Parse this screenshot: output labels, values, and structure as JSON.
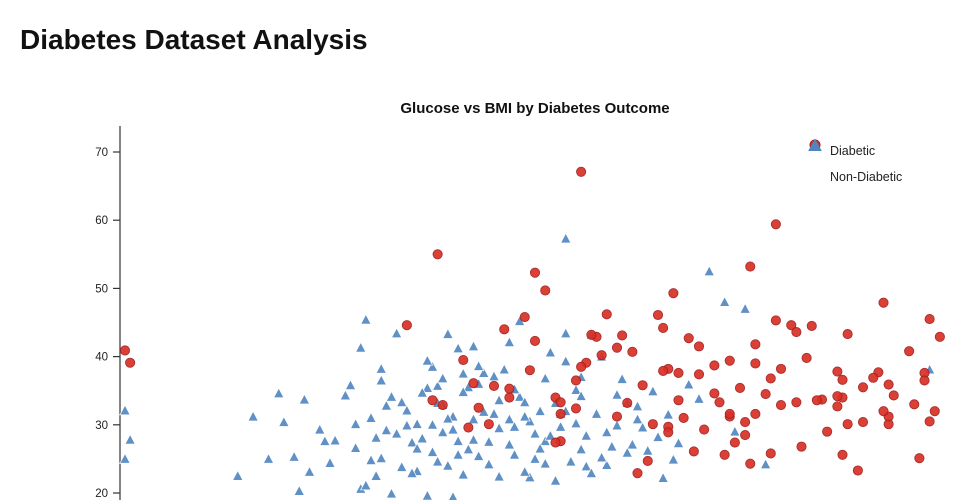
{
  "page": {
    "title": "Diabetes Dataset Analysis"
  },
  "chart_data": {
    "type": "scatter",
    "title": "Glucose vs BMI by Diabetes Outcome",
    "xlabel": "",
    "ylabel": "",
    "grid": false,
    "legend_position": "top-right",
    "xlim": [
      40,
      200
    ],
    "ylim": [
      18,
      72
    ],
    "yticks": [
      20,
      30,
      40,
      50,
      60,
      70
    ],
    "series": [
      {
        "name": "Diabetic",
        "marker": "circle",
        "color": "#d93025",
        "edge": "#a31d1d",
        "points": [
          [
            148,
            33.6
          ],
          [
            183,
            23.3
          ],
          [
            137,
            43.1
          ],
          [
            197,
            30.5
          ],
          [
            189,
            30.1
          ],
          [
            166,
            25.8
          ],
          [
            118,
            45.8
          ],
          [
            107,
            29.6
          ],
          [
            115,
            35.3
          ],
          [
            196,
            37.6
          ],
          [
            119,
            38.0
          ],
          [
            143,
            30.1
          ],
          [
            125,
            31.6
          ],
          [
            145,
            44.2
          ],
          [
            158,
            31.2
          ],
          [
            111,
            30.1
          ],
          [
            180,
            34.0
          ],
          [
            171,
            33.3
          ],
          [
            180,
            25.6
          ],
          [
            193,
            40.8
          ],
          [
            159,
            27.4
          ],
          [
            180,
            36.6
          ],
          [
            146,
            29.7
          ],
          [
            124,
            34.0
          ],
          [
            129,
            67.1
          ],
          [
            167,
            59.4
          ],
          [
            197,
            45.5
          ],
          [
            168,
            38.2
          ],
          [
            165,
            34.5
          ],
          [
            162,
            53.2
          ],
          [
            173,
            39.8
          ],
          [
            139,
            40.7
          ],
          [
            161,
            30.4
          ],
          [
            138,
            33.2
          ],
          [
            128,
            32.4
          ],
          [
            181,
            43.3
          ],
          [
            155,
            34.6
          ],
          [
            133,
            40.2
          ],
          [
            189,
            31.2
          ],
          [
            195,
            25.1
          ],
          [
            179,
            34.2
          ],
          [
            150,
            42.7
          ],
          [
            187,
            37.7
          ],
          [
            184,
            35.5
          ],
          [
            158,
            39.4
          ],
          [
            176,
            33.7
          ],
          [
            130,
            39.1
          ],
          [
            112,
            35.7
          ],
          [
            147,
            49.3
          ],
          [
            136,
            41.3
          ],
          [
            184,
            30.4
          ],
          [
            174,
            44.5
          ],
          [
            109,
            32.5
          ],
          [
            152,
            41.5
          ],
          [
            157,
            25.6
          ],
          [
            134,
            46.2
          ],
          [
            102,
            32.9
          ],
          [
            144,
            46.1
          ],
          [
            132,
            42.9
          ],
          [
            188,
            47.9
          ],
          [
            155,
            38.7
          ],
          [
            167,
            45.3
          ],
          [
            125,
            33.3
          ],
          [
            196,
            36.5
          ],
          [
            189,
            35.9
          ],
          [
            158,
            31.6
          ],
          [
            146,
            38.2
          ],
          [
            100,
            33.6
          ],
          [
            170,
            44.6
          ],
          [
            146,
            28.9
          ],
          [
            161,
            28.5
          ],
          [
            190,
            34.3
          ],
          [
            148,
            37.6
          ],
          [
            163,
            39.0
          ],
          [
            115,
            34.0
          ],
          [
            120,
            42.3
          ],
          [
            163,
            31.6
          ],
          [
            145,
            37.9
          ],
          [
            128,
            36.5
          ],
          [
            198,
            32.0
          ],
          [
            168,
            32.9
          ],
          [
            108,
            36.1
          ],
          [
            156,
            33.3
          ],
          [
            188,
            32.0
          ],
          [
            152,
            37.4
          ],
          [
            163,
            41.8
          ],
          [
            125,
            27.6
          ],
          [
            179,
            37.8
          ],
          [
            124,
            27.4
          ],
          [
            162,
            24.3
          ],
          [
            106,
            39.5
          ],
          [
            136,
            31.2
          ],
          [
            181,
            30.1
          ],
          [
            122,
            49.7
          ],
          [
            95,
            44.6
          ],
          [
            171,
            43.6
          ],
          [
            175,
            33.6
          ],
          [
            179,
            32.7
          ],
          [
            129,
            38.5
          ],
          [
            101,
            55.0
          ],
          [
            120,
            52.3
          ],
          [
            40,
            40.9
          ],
          [
            41,
            39.1
          ],
          [
            142,
            24.7
          ],
          [
            153,
            29.3
          ],
          [
            199,
            42.9
          ],
          [
            141,
            35.8
          ],
          [
            177,
            29.0
          ],
          [
            131,
            43.2
          ],
          [
            166,
            36.8
          ],
          [
            151,
            26.1
          ],
          [
            186,
            36.9
          ],
          [
            114,
            44.0
          ],
          [
            172,
            26.8
          ],
          [
            160,
            35.4
          ],
          [
            194,
            33.0
          ],
          [
            140,
            22.9
          ],
          [
            149,
            31.0
          ]
        ]
      },
      {
        "name": "Non-Diabetic",
        "marker": "triangle",
        "color": "#4f86c0",
        "edge": "#ffffff",
        "points": [
          [
            85,
            26.6
          ],
          [
            89,
            28.1
          ],
          [
            116,
            25.6
          ],
          [
            110,
            37.6
          ],
          [
            139,
            27.1
          ],
          [
            103,
            43.3
          ],
          [
            126,
            39.3
          ],
          [
            99,
            35.4
          ],
          [
            97,
            23.2
          ],
          [
            145,
            22.2
          ],
          [
            117,
            34.1
          ],
          [
            109,
            36.0
          ],
          [
            88,
            24.8
          ],
          [
            92,
            19.9
          ],
          [
            122,
            27.6
          ],
          [
            103,
            24.0
          ],
          [
            138,
            33.2
          ],
          [
            102,
            32.9
          ],
          [
            90,
            38.2
          ],
          [
            111,
            27.5
          ],
          [
            100,
            30.0
          ],
          [
            131,
            43.2
          ],
          [
            104,
            31.2
          ],
          [
            101,
            35.7
          ],
          [
            87,
            45.4
          ],
          [
            123,
            28.4
          ],
          [
            105,
            27.6
          ],
          [
            113,
            29.5
          ],
          [
            94,
            33.3
          ],
          [
            108,
            30.8
          ],
          [
            96,
            22.9
          ],
          [
            127,
            24.6
          ],
          [
            118,
            33.3
          ],
          [
            99,
            19.6
          ],
          [
            120,
            28.7
          ],
          [
            106,
            37.5
          ],
          [
            91,
            29.2
          ],
          [
            134,
            28.9
          ],
          [
            121,
            26.5
          ],
          [
            84,
            35.8
          ],
          [
            107,
            26.4
          ],
          [
            115,
            30.8
          ],
          [
            93,
            28.7
          ],
          [
            129,
            26.4
          ],
          [
            102,
            36.8
          ],
          [
            125,
            31.6
          ],
          [
            140,
            32.7
          ],
          [
            98,
            34.7
          ],
          [
            112,
            31.6
          ],
          [
            130,
            23.9
          ],
          [
            86,
            41.3
          ],
          [
            119,
            22.3
          ],
          [
            104,
            19.4
          ],
          [
            95,
            32.1
          ],
          [
            124,
            33.2
          ],
          [
            109,
            25.4
          ],
          [
            116,
            29.7
          ],
          [
            101,
            24.6
          ],
          [
            135,
            26.8
          ],
          [
            128,
            35.1
          ],
          [
            90,
            25.1
          ],
          [
            105,
            41.2
          ],
          [
            113,
            22.4
          ],
          [
            122,
            36.8
          ],
          [
            97,
            30.1
          ],
          [
            133,
            40.0
          ],
          [
            88,
            31.0
          ],
          [
            100,
            38.5
          ],
          [
            118,
            23.1
          ],
          [
            136,
            29.9
          ],
          [
            93,
            43.4
          ],
          [
            126,
            32.0
          ],
          [
            108,
            27.8
          ],
          [
            83,
            34.3
          ],
          [
            114,
            38.1
          ],
          [
            103,
            30.9
          ],
          [
            129,
            34.2
          ],
          [
            120,
            25.0
          ],
          [
            99,
            39.4
          ],
          [
            85,
            30.1
          ],
          [
            137,
            36.7
          ],
          [
            106,
            22.7
          ],
          [
            117,
            45.2
          ],
          [
            92,
            34.1
          ],
          [
            111,
            24.2
          ],
          [
            130,
            28.4
          ],
          [
            104,
            29.3
          ],
          [
            96,
            27.4
          ],
          [
            124,
            21.8
          ],
          [
            89,
            22.5
          ],
          [
            115,
            42.1
          ],
          [
            101,
            33.2
          ],
          [
            142,
            26.2
          ],
          [
            81,
            27.7
          ],
          [
            125,
            29.7
          ],
          [
            110,
            31.9
          ],
          [
            94,
            23.8
          ],
          [
            132,
            31.6
          ],
          [
            107,
            35.5
          ],
          [
            119,
            30.5
          ],
          [
            86,
            20.6
          ],
          [
            123,
            40.6
          ],
          [
            98,
            28.0
          ],
          [
            138,
            25.9
          ],
          [
            91,
            32.8
          ],
          [
            112,
            37.1
          ],
          [
            105,
            25.6
          ],
          [
            128,
            30.2
          ],
          [
            100,
            26.0
          ],
          [
            116,
            35.2
          ],
          [
            143,
            34.9
          ],
          [
            80,
            24.4
          ],
          [
            121,
            32.0
          ],
          [
            109,
            38.6
          ],
          [
            95,
            29.9
          ],
          [
            134,
            24.1
          ],
          [
            102,
            28.9
          ],
          [
            126,
            43.4
          ],
          [
            87,
            21.1
          ],
          [
            118,
            31.2
          ],
          [
            148,
            27.3
          ],
          [
            113,
            33.6
          ],
          [
            106,
            34.8
          ],
          [
            97,
            26.5
          ],
          [
            140,
            30.8
          ],
          [
            122,
            24.3
          ],
          [
            90,
            36.5
          ],
          [
            131,
            22.9
          ],
          [
            108,
            41.5
          ],
          [
            115,
            27.1
          ],
          [
            126,
            57.3
          ],
          [
            154,
            52.5
          ],
          [
            157,
            48.0
          ],
          [
            161,
            47.0
          ],
          [
            40,
            25.0
          ],
          [
            40,
            32.1
          ],
          [
            41,
            27.8
          ],
          [
            73,
            25.3
          ],
          [
            78,
            29.3
          ],
          [
            62,
            22.5
          ],
          [
            150,
            35.9
          ],
          [
            159,
            29.0
          ],
          [
            165,
            24.2
          ],
          [
            197,
            38.1
          ],
          [
            68,
            25.0
          ],
          [
            71,
            30.4
          ],
          [
            75,
            33.7
          ],
          [
            79,
            27.6
          ],
          [
            76,
            23.1
          ],
          [
            65,
            31.2
          ],
          [
            70,
            34.6
          ],
          [
            74,
            20.3
          ],
          [
            146,
            31.5
          ],
          [
            152,
            33.8
          ],
          [
            144,
            28.2
          ],
          [
            136,
            34.4
          ],
          [
            129,
            37.0
          ],
          [
            133,
            25.2
          ],
          [
            141,
            29.6
          ],
          [
            147,
            24.9
          ]
        ]
      }
    ]
  }
}
